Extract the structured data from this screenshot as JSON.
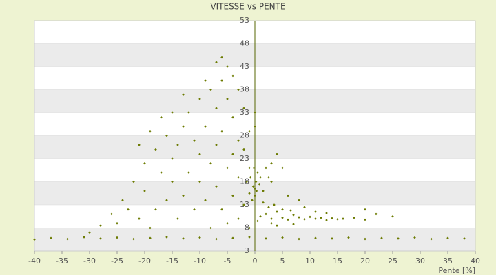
{
  "chart_data": {
    "type": "scatter",
    "title": "VITESSE vs PENTE",
    "x_label": "Pente [%]",
    "xlim": [
      -40,
      40
    ],
    "xticks": [
      -40,
      -35,
      -30,
      -25,
      -20,
      -15,
      -10,
      -5,
      0,
      5,
      10,
      15,
      20,
      25,
      30,
      35,
      40
    ],
    "ylim": [
      3,
      53
    ],
    "yticks": [
      3,
      8,
      13,
      18,
      23,
      28,
      33,
      38,
      43,
      48,
      53
    ],
    "grid": true,
    "series": [
      {
        "color": "#6b7a00",
        "x": [
          -40,
          -37,
          -34,
          -31,
          -28,
          -25,
          -22,
          -19,
          -16,
          -13,
          -10,
          -7,
          -4,
          -1,
          2,
          5,
          8,
          11,
          14,
          17,
          20,
          23,
          26,
          29,
          32,
          35,
          38,
          1,
          2,
          3,
          4,
          5,
          6,
          7,
          8,
          9,
          10,
          11,
          12,
          13,
          14,
          15,
          16,
          18,
          20,
          2.5,
          3.5,
          5,
          1.5,
          6.5,
          4,
          7,
          9,
          11,
          13,
          0.5,
          3,
          -0.5,
          0,
          0.3,
          -0.3,
          0.2,
          -0.8,
          0.5,
          -0.2,
          0,
          -1,
          0.8,
          1,
          -1.5,
          1.5,
          2,
          3,
          2.5,
          0,
          0,
          4,
          5,
          3,
          6,
          8,
          22,
          25,
          20,
          -25,
          -24,
          -22,
          -20,
          -20,
          -18,
          -18,
          -17,
          -16,
          -16,
          -15,
          -15,
          -14,
          -14,
          -13,
          -13,
          -12,
          -12,
          -11,
          -11,
          -10,
          -10,
          -10,
          -9,
          -9,
          -8,
          -8,
          -8,
          -7,
          -7,
          -7,
          -6,
          -6,
          -6,
          -5,
          -5,
          -5,
          -5,
          -4,
          -4,
          -4,
          -4,
          -3,
          -3,
          -3,
          -3,
          -2,
          -2,
          -2,
          -1,
          -1,
          -1,
          -30,
          -28,
          -26,
          -23,
          -21,
          -19,
          -17,
          -19,
          -21,
          -13,
          -15,
          -9,
          -7,
          -6
        ],
        "y": [
          5.5,
          5.8,
          5.6,
          6,
          5.7,
          5.9,
          5.6,
          5.8,
          6,
          5.7,
          5.9,
          5.6,
          5.8,
          6,
          5.7,
          5.9,
          5.6,
          5.8,
          5.7,
          5.9,
          5.6,
          5.8,
          5.7,
          5.9,
          5.6,
          5.8,
          5.7,
          10.5,
          11,
          10,
          11.5,
          10.2,
          9.8,
          10.8,
          10.3,
          9.9,
          10.4,
          10,
          10.2,
          9.7,
          10.1,
          9.9,
          10,
          10.2,
          9.8,
          12.5,
          13,
          12,
          13.5,
          11.8,
          8.5,
          8.8,
          12.5,
          11.5,
          11.2,
          9.5,
          9,
          14,
          15,
          16,
          17,
          18,
          19,
          20,
          21,
          16.5,
          15.5,
          17.5,
          19,
          18,
          16,
          21,
          22,
          19,
          30,
          33,
          24,
          21,
          18,
          15,
          14,
          11,
          10.5,
          12,
          9,
          14,
          18,
          22,
          16,
          12,
          25,
          20,
          14,
          28,
          18,
          23,
          10,
          26,
          30,
          15,
          20,
          33,
          12,
          27,
          18,
          24,
          36,
          14,
          30,
          22,
          38,
          8,
          26,
          34,
          17,
          40,
          29,
          12,
          43,
          36,
          21,
          9,
          41,
          32,
          24,
          15,
          38,
          27,
          19,
          10,
          34,
          25,
          13,
          29,
          21,
          8,
          7,
          8.5,
          11,
          12,
          10,
          8,
          32,
          29,
          26,
          37,
          33,
          40,
          44,
          45
        ]
      }
    ]
  }
}
